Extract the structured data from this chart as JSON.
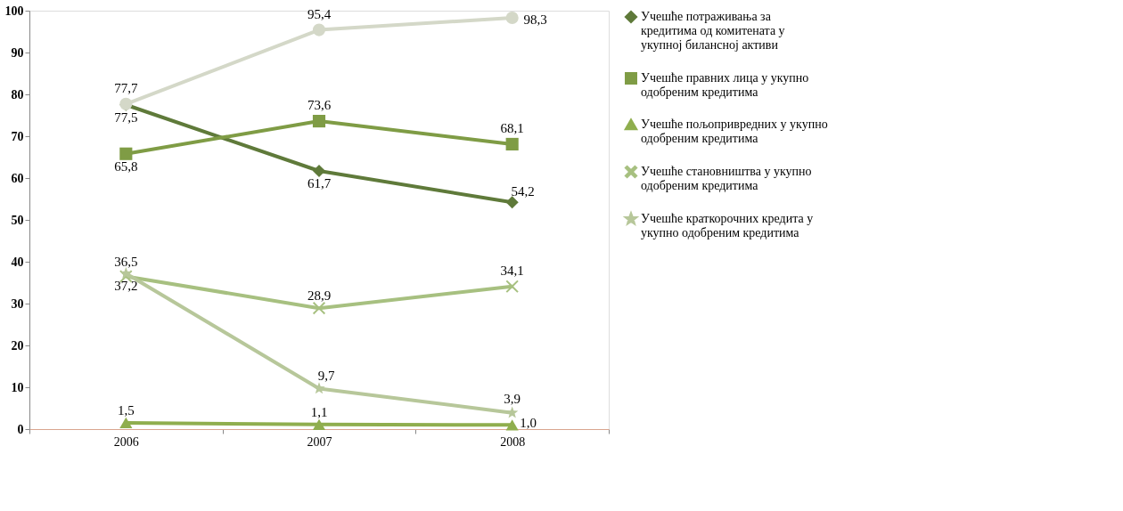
{
  "chart_data": {
    "type": "line",
    "categories": [
      "2006",
      "2007",
      "2008"
    ],
    "series": [
      {
        "name": "Учешће потраживања за кредитима од комитената у укупној билансној активи",
        "color": "#5f7a3a",
        "marker": "diamond",
        "values": [
          77.5,
          61.7,
          54.2
        ],
        "value_labels": [
          "77,5",
          "61,7",
          "54,2"
        ]
      },
      {
        "name": "Учешће правних лица у укупно одобреним кредитима",
        "color": "#7f9c45",
        "marker": "square",
        "values": [
          65.8,
          73.6,
          68.1
        ],
        "value_labels": [
          "65,8",
          "73,6",
          "68,1"
        ]
      },
      {
        "name": "Учешће пољопривредних у укупно одобреним кредитима",
        "color": "#8fae4e",
        "marker": "triangle",
        "values": [
          1.5,
          1.1,
          1.0
        ],
        "value_labels": [
          "1,5",
          "1,1",
          "1,0"
        ]
      },
      {
        "name": "Учешће становништва у укупно одобреним кредитима",
        "color": "#a7c080",
        "marker": "cross",
        "values": [
          36.5,
          28.9,
          34.1
        ],
        "value_labels": [
          "36,5",
          "28,9",
          "34,1"
        ]
      },
      {
        "name": "Учешће краткорочних кредита у укупно одобреним кредитима",
        "color": "#b7c79a",
        "marker": "star",
        "values": [
          37.2,
          9.7,
          3.9
        ],
        "value_labels": [
          "37,2",
          "9,7",
          "3,9"
        ]
      },
      {
        "color": "#d4d8c8",
        "marker": "circle",
        "values": [
          77.7,
          95.4,
          98.3
        ],
        "value_labels": [
          "77,7",
          "95,4",
          "98,3"
        ]
      }
    ],
    "ylim": [
      0,
      100
    ],
    "yticks": [
      0,
      10,
      20,
      30,
      40,
      50,
      60,
      70,
      80,
      90,
      100
    ],
    "grid": false,
    "legend": "right",
    "data_labels": true,
    "line_style": "solid"
  }
}
